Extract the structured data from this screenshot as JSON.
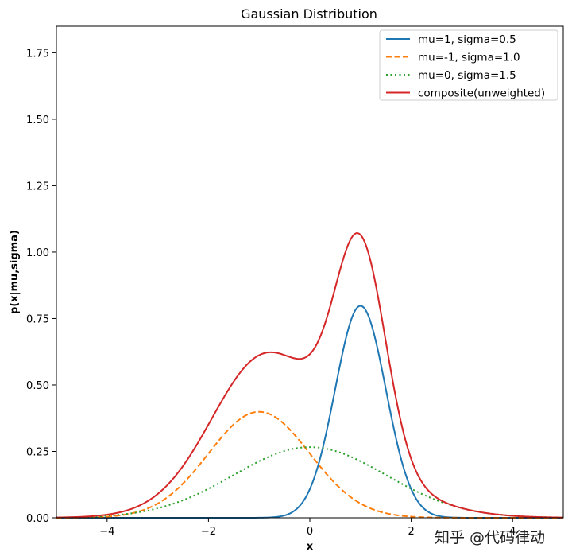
{
  "chart_data": {
    "type": "line",
    "title": "Gaussian Distribution",
    "xlabel": "x",
    "ylabel": "p(x|mu,sigma)",
    "xlim": [
      -5,
      5
    ],
    "ylim": [
      0,
      1.85
    ],
    "xticks": [
      -4,
      -2,
      0,
      2,
      4
    ],
    "xtick_labels": [
      "−4",
      "−2",
      "0",
      "2",
      "4"
    ],
    "yticks": [
      0.0,
      0.25,
      0.5,
      0.75,
      1.0,
      1.25,
      1.5,
      1.75
    ],
    "ytick_labels": [
      "0.00",
      "0.25",
      "0.50",
      "0.75",
      "1.00",
      "1.25",
      "1.50",
      "1.75"
    ],
    "grid": false,
    "legend_position": "top-right",
    "series": [
      {
        "name": "mu=1, sigma=0.5",
        "mu": 1,
        "sigma": 0.5,
        "color": "#1f77b4",
        "style": "solid"
      },
      {
        "name": "mu=-1, sigma=1.0",
        "mu": -1,
        "sigma": 1.0,
        "color": "#ff7f0e",
        "style": "dashed"
      },
      {
        "name": "mu=0, sigma=1.5",
        "mu": 0,
        "sigma": 1.5,
        "color": "#2ca02c",
        "style": "dotted"
      },
      {
        "name": "composite(unweighted)",
        "components": [
          0,
          1,
          2
        ],
        "color": "#d62728",
        "style": "solid"
      }
    ]
  },
  "watermark": "知乎 @代码律动"
}
